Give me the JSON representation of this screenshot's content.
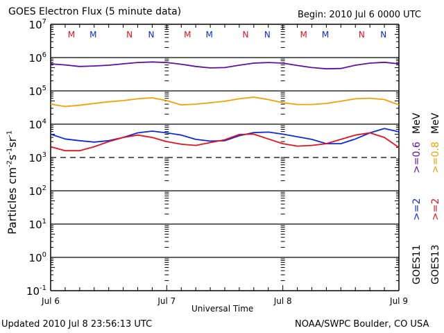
{
  "chart_data": {
    "type": "line",
    "title": "GOES Electron Flux (5 minute data)",
    "begin_label": "Begin: 2010 Jul 6 0000 UTC",
    "xlabel": "Universal Time",
    "ylabel": "Particles cm-2s-1sr-1",
    "yscale": "log",
    "ylim": [
      0.1,
      10000000
    ],
    "xlim_days": [
      0,
      3
    ],
    "x_tick_labels": [
      "Jul 6",
      "Jul 7",
      "Jul 8",
      "Jul 9"
    ],
    "y_tick_labels": [
      {
        "base": "10",
        "exp": "7",
        "value": 10000000
      },
      {
        "base": "10",
        "exp": "6",
        "value": 1000000
      },
      {
        "base": "10",
        "exp": "5",
        "value": 100000
      },
      {
        "base": "10",
        "exp": "4",
        "value": 10000
      },
      {
        "base": "10",
        "exp": "3",
        "value": 1000
      },
      {
        "base": "10",
        "exp": "2",
        "value": 100
      },
      {
        "base": "10",
        "exp": "1",
        "value": 10
      },
      {
        "base": "10",
        "exp": "0",
        "value": 1
      },
      {
        "base": "10",
        "exp": "-1",
        "value": 0.1
      }
    ],
    "grid": "horizontal lines at each decade from 10^6 to 10^0",
    "threshold_line": {
      "value": 1000,
      "style": "dashed"
    },
    "x_hours": [
      0,
      3,
      6,
      9,
      12,
      15,
      18,
      21,
      24,
      27,
      30,
      33,
      36,
      39,
      42,
      45,
      48,
      51,
      54,
      57,
      60,
      63,
      66,
      69,
      72
    ],
    "series": [
      {
        "name": "GOES11 >=0.6 MeV",
        "color": "#5b0fa8",
        "values": [
          650000,
          600000,
          540000,
          560000,
          590000,
          650000,
          710000,
          740000,
          710000,
          630000,
          540000,
          490000,
          500000,
          590000,
          680000,
          710000,
          680000,
          580000,
          500000,
          460000,
          470000,
          590000,
          680000,
          720000,
          650000
        ]
      },
      {
        "name": "GOES13 >=0.8 MeV",
        "color": "#f5a000",
        "values": [
          40000,
          34000,
          37000,
          42000,
          47000,
          51000,
          58000,
          62000,
          51000,
          38000,
          40000,
          44000,
          49000,
          58000,
          65000,
          55000,
          44000,
          39000,
          39000,
          42000,
          49000,
          58000,
          60000,
          55000,
          38000
        ]
      },
      {
        "name": "GOES11 >=2 MeV",
        "color": "#0a28e8",
        "values": [
          5000,
          3600,
          3200,
          2900,
          3200,
          4000,
          5500,
          6200,
          5500,
          4700,
          3500,
          3100,
          3200,
          4500,
          5600,
          5800,
          5000,
          4200,
          3500,
          2600,
          2600,
          3600,
          5500,
          7400,
          5900
        ]
      },
      {
        "name": "GOES13 >=2 MeV",
        "color": "#e8101a",
        "values": [
          2100,
          1600,
          1600,
          2100,
          3000,
          4000,
          4700,
          4000,
          3000,
          2500,
          2300,
          2800,
          3400,
          4900,
          5000,
          3600,
          2600,
          2200,
          2300,
          2600,
          3500,
          4700,
          5500,
          4000,
          2000
        ]
      }
    ],
    "event_markers": [
      {
        "label": "M",
        "color": "#e8101a",
        "hour": 4.3
      },
      {
        "label": "M",
        "color": "#0a28e8",
        "hour": 8.8
      },
      {
        "label": "N",
        "color": "#e8101a",
        "hour": 16.3
      },
      {
        "label": "N",
        "color": "#0a28e8",
        "hour": 20.8
      },
      {
        "label": "M",
        "color": "#e8101a",
        "hour": 28.3
      },
      {
        "label": "M",
        "color": "#0a28e8",
        "hour": 32.8
      },
      {
        "label": "N",
        "color": "#e8101a",
        "hour": 40.3
      },
      {
        "label": "N",
        "color": "#0a28e8",
        "hour": 44.8
      },
      {
        "label": "M",
        "color": "#e8101a",
        "hour": 52.3
      },
      {
        "label": "M",
        "color": "#0a28e8",
        "hour": 56.8
      },
      {
        "label": "N",
        "color": "#e8101a",
        "hour": 64.3
      },
      {
        "label": "N",
        "color": "#0a28e8",
        "hour": 68.8
      }
    ],
    "legend": {
      "placement": "right (rotated vertical text)",
      "columns": [
        {
          "satellite": "GOES11",
          "low_energy": ">=0.6",
          "low_color": "#5b0fa8",
          "high_energy": ">=2",
          "high_color": "#0a28e8",
          "unit": "MeV"
        },
        {
          "satellite": "GOES13",
          "low_energy": ">=0.8",
          "low_color": "#f5a000",
          "high_energy": ">=2",
          "high_color": "#e8101a",
          "unit": "MeV"
        }
      ]
    }
  },
  "footer": {
    "updated": "Updated 2010 Jul  8 23:56:13 UTC",
    "credit": "NOAA/SWPC Boulder, CO USA"
  }
}
